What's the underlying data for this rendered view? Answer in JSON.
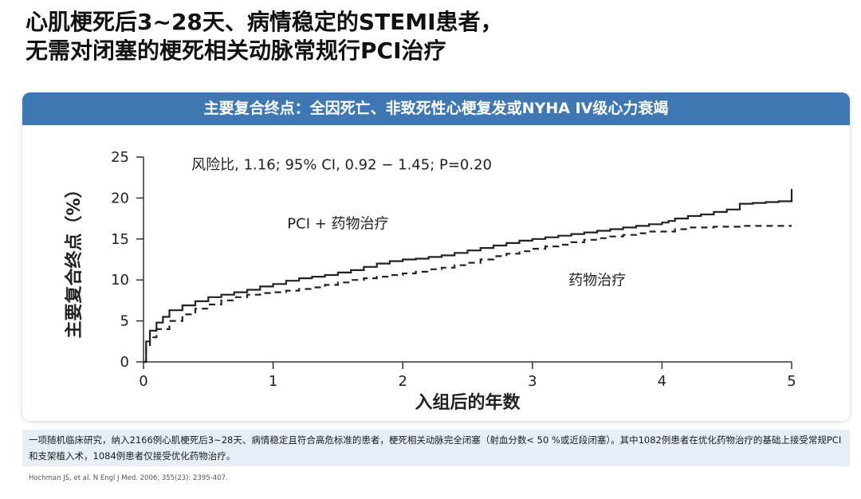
{
  "slide": {
    "title_lines": [
      "心肌梗死后3~28天、病情稳定的STEMI患者，",
      "无需对闭塞的梗死相关动脉常规行PCI治疗"
    ],
    "card_header": "主要复合终点：全因死亡、非致死性心梗复发或NYHA IV级心力衰竭",
    "footnote": "一项随机临床研究，纳入2166例心肌梗死后3~28天、病情稳定且符合高危标准的患者，梗死相关动脉完全闭塞（射血分数< 50 %或近段闭塞）。其中1082例患者在优化药物治疗的基础上接受常规PCI和支架植入术，1084例患者仅接受优化药物治疗。",
    "reference": "Hochman JS, et al. N Engl J Med. 2006; 355(23): 2395-407."
  },
  "chart_data": {
    "type": "line",
    "title": "",
    "xlabel": "入组后的年数",
    "ylabel": "主要复合终点（%）",
    "xlim": [
      0,
      5
    ],
    "ylim": [
      0,
      25
    ],
    "x_ticks": [
      "0",
      "1",
      "2",
      "3",
      "4",
      "5"
    ],
    "y_ticks": [
      "0",
      "5",
      "10",
      "15",
      "20",
      "25"
    ],
    "grid": false,
    "annotations": [
      "风险比, 1.16; 95% CI, 0.92 − 1.45; P=0.20"
    ],
    "series": [
      {
        "name": "PCI + 药物治疗",
        "style": "solid",
        "color": "#222222",
        "x": [
          0,
          0.02,
          0.05,
          0.1,
          0.15,
          0.2,
          0.3,
          0.4,
          0.5,
          0.6,
          0.7,
          0.8,
          0.9,
          1.0,
          1.1,
          1.2,
          1.3,
          1.4,
          1.5,
          1.6,
          1.7,
          1.8,
          1.9,
          2.0,
          2.1,
          2.2,
          2.3,
          2.4,
          2.5,
          2.6,
          2.7,
          2.8,
          2.9,
          3.0,
          3.1,
          3.2,
          3.3,
          3.4,
          3.5,
          3.6,
          3.7,
          3.8,
          3.9,
          4.0,
          4.05,
          4.1,
          4.2,
          4.3,
          4.4,
          4.5,
          4.6,
          4.7,
          4.8,
          4.9,
          5.0,
          5.0
        ],
        "values": [
          0,
          2.5,
          3.8,
          4.8,
          5.5,
          6.3,
          6.9,
          7.4,
          7.9,
          8.2,
          8.5,
          8.8,
          9.2,
          9.5,
          9.9,
          10.2,
          10.4,
          10.6,
          10.9,
          11.2,
          11.6,
          12.0,
          12.3,
          12.5,
          12.6,
          12.8,
          13.0,
          13.3,
          13.6,
          13.9,
          14.2,
          14.5,
          14.8,
          15.0,
          15.2,
          15.4,
          15.6,
          15.8,
          16.0,
          16.2,
          16.4,
          16.6,
          16.8,
          17.0,
          17.2,
          17.5,
          17.8,
          18.0,
          18.3,
          18.6,
          19.3,
          19.4,
          19.5,
          19.6,
          19.8,
          21.1
        ]
      },
      {
        "name": "药物治疗",
        "style": "dashed",
        "color": "#222222",
        "x": [
          0,
          0.02,
          0.05,
          0.1,
          0.2,
          0.3,
          0.4,
          0.5,
          0.6,
          0.7,
          0.8,
          0.9,
          1.0,
          1.1,
          1.2,
          1.3,
          1.4,
          1.5,
          1.6,
          1.7,
          1.8,
          1.9,
          2.0,
          2.1,
          2.2,
          2.3,
          2.4,
          2.5,
          2.6,
          2.7,
          2.8,
          2.9,
          3.0,
          3.1,
          3.2,
          3.3,
          3.4,
          3.5,
          3.6,
          3.7,
          3.8,
          3.9,
          4.0,
          4.1,
          4.2,
          4.4,
          4.6,
          4.8,
          5.0
        ],
        "values": [
          0,
          1.8,
          3.0,
          4.0,
          5.0,
          5.8,
          6.5,
          7.0,
          7.5,
          7.9,
          8.2,
          8.4,
          8.5,
          8.7,
          8.9,
          9.1,
          9.4,
          9.7,
          10.0,
          10.2,
          10.4,
          10.6,
          10.8,
          11.0,
          11.3,
          11.5,
          11.8,
          12.1,
          12.5,
          12.9,
          13.2,
          13.5,
          13.8,
          14.1,
          14.3,
          14.6,
          14.9,
          15.1,
          15.3,
          15.5,
          15.7,
          15.9,
          15.9,
          16.2,
          16.4,
          16.5,
          16.6,
          16.6,
          16.6
        ]
      }
    ]
  }
}
